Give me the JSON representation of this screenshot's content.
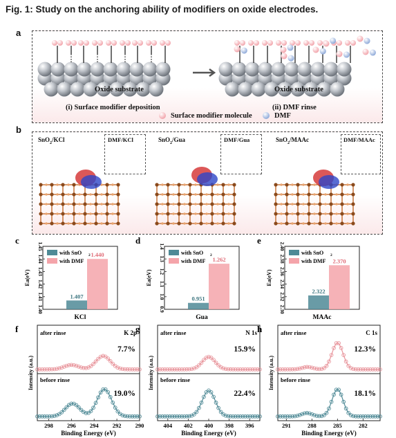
{
  "figure_title": "Fig. 1: Study on the anchoring ability of modifiers on oxide electrodes.",
  "panel_a": {
    "label": "a",
    "left_substrate": "Oxide substrate",
    "right_substrate": "Oxide substrate",
    "left_caption": "(i) Surface modifier deposition",
    "right_caption": "(ii) DMF rinse",
    "legend_modifier": "Surface modifier molecule",
    "legend_dmf": "DMF",
    "colors": {
      "modifier": "#f2a3aa",
      "dmf": "#8ea9d9",
      "substrate": "#9aa0a8"
    }
  },
  "panel_b": {
    "label": "b",
    "structures": [
      {
        "title": "SnO2/KCl",
        "inset": "DMF/KCl"
      },
      {
        "title": "SnO2/Gua",
        "inset": "DMF/Gua"
      },
      {
        "title": "SnO2/MAAc",
        "inset": "DMF/MAAc"
      }
    ]
  },
  "chart_data": [
    {
      "panel": "c",
      "type": "bar",
      "categories": [
        "KCl"
      ],
      "series": [
        {
          "name": "with SnO2",
          "values": [
            1.407
          ]
        },
        {
          "name": "with DMF",
          "values": [
            1.44
          ]
        }
      ],
      "value_labels": [
        "1.407",
        "1.440"
      ],
      "xlabel": "KCl",
      "ylabel": "Ea(eV)",
      "ylim": [
        1.4,
        1.45
      ],
      "yticks": [
        "1.40",
        "1.41",
        "1.42",
        "1.43",
        "1.44",
        "1.45"
      ],
      "legend": [
        "with SnO",
        "with DMF"
      ],
      "legend_sub": "2"
    },
    {
      "panel": "d",
      "type": "bar",
      "categories": [
        "Gua"
      ],
      "series": [
        {
          "name": "with SnO2",
          "values": [
            0.951
          ]
        },
        {
          "name": "with DMF",
          "values": [
            1.262
          ]
        }
      ],
      "value_labels": [
        "0.951",
        "1.262"
      ],
      "xlabel": "Gua",
      "ylabel": "Ea(eV)",
      "ylim": [
        0.9,
        1.4
      ],
      "yticks": [
        "0.9",
        "1.0",
        "1.1",
        "1.2",
        "1.3",
        "1.4"
      ],
      "legend": [
        "with SnO",
        "with DMF"
      ],
      "legend_sub": "2"
    },
    {
      "panel": "e",
      "type": "bar",
      "categories": [
        "MAAc"
      ],
      "series": [
        {
          "name": "with SnO2",
          "values": [
            2.322
          ]
        },
        {
          "name": "with DMF",
          "values": [
            2.37
          ]
        }
      ],
      "value_labels": [
        "2.322",
        "2.370"
      ],
      "xlabel": "MAAc",
      "ylabel": "Ea(eV)",
      "ylim": [
        2.3,
        2.4
      ],
      "yticks": [
        "2.30",
        "2.32",
        "2.34",
        "2.36",
        "2.38",
        "2.40"
      ],
      "legend": [
        "with SnO",
        "with DMF"
      ],
      "legend_sub": "2"
    },
    {
      "panel": "f",
      "type": "line",
      "element": "K 2p",
      "xlabel": "Binding Energy (eV)",
      "ylabel": "Intensity (a.u.)",
      "xlim": [
        299,
        290
      ],
      "xticks": [
        298,
        296,
        294,
        292,
        290
      ],
      "top": {
        "label": "after rinse",
        "percent": "7.7%",
        "peaks": [
          [
            296.0,
            0.15
          ],
          [
            293.2,
            0.45
          ]
        ]
      },
      "bottom": {
        "label": "before rinse",
        "percent": "19.0%",
        "peaks": [
          [
            295.9,
            0.45
          ],
          [
            293.1,
            0.95
          ]
        ]
      }
    },
    {
      "panel": "g",
      "type": "line",
      "element": "N 1s",
      "xlabel": "Binding Energy (eV)",
      "ylabel": "Intensity (a.u.)",
      "xlim": [
        405,
        395
      ],
      "xticks": [
        404,
        402,
        400,
        398,
        396
      ],
      "top": {
        "label": "after rinse",
        "percent": "15.9%",
        "peaks": [
          [
            400.0,
            0.42
          ]
        ]
      },
      "bottom": {
        "label": "before rinse",
        "percent": "22.4%",
        "peaks": [
          [
            400.0,
            0.9
          ]
        ]
      }
    },
    {
      "panel": "h",
      "type": "line",
      "element": "C 1s",
      "xlabel": "Binding Energy (eV)",
      "ylabel": "Intensity (a.u.)",
      "xlim": [
        292,
        280
      ],
      "xticks": [
        291,
        288,
        285,
        282
      ],
      "top": {
        "label": "after rinse",
        "percent": "12.3%",
        "peaks": [
          [
            285.0,
            0.9
          ],
          [
            288.5,
            0.08
          ]
        ]
      },
      "bottom": {
        "label": "before rinse",
        "percent": "18.1%",
        "peaks": [
          [
            285.0,
            0.95
          ],
          [
            288.6,
            0.12
          ]
        ]
      }
    }
  ]
}
